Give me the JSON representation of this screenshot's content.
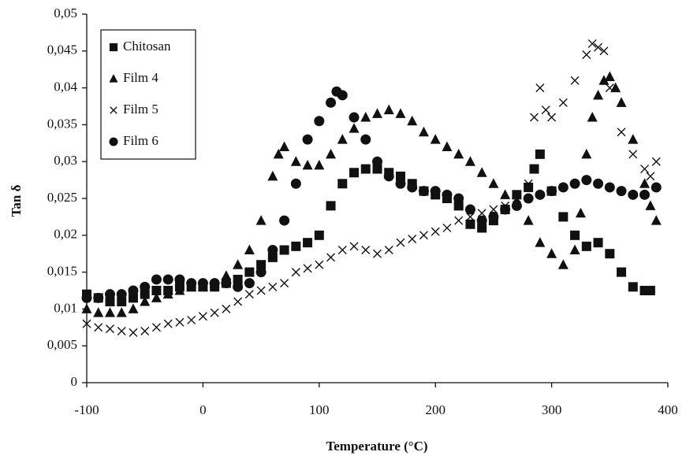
{
  "chart_data": {
    "type": "scatter",
    "x_label": "Temperature (°C)",
    "y_label": "Tan δ",
    "xlim": [
      -100,
      400
    ],
    "xticks": [
      -100,
      0,
      100,
      200,
      300,
      400
    ],
    "ylim": [
      0,
      0.05
    ],
    "yticks": [
      0,
      {
        "value": 0.005,
        "label": "0,005"
      },
      {
        "value": 0.01,
        "label": "0,01"
      },
      {
        "value": 0.015,
        "label": "0,015"
      },
      {
        "value": 0.02,
        "label": "0,02"
      },
      {
        "value": 0.025,
        "label": "0,025"
      },
      {
        "value": 0.03,
        "label": "0,03"
      },
      {
        "value": 0.035,
        "label": "0,035"
      },
      {
        "value": 0.04,
        "label": "0,04"
      },
      {
        "value": 0.045,
        "label": "0,045"
      },
      {
        "value": 0.05,
        "label": "0,05"
      }
    ],
    "grid": false,
    "legend": "upper-left",
    "series": [
      {
        "name": "Chitosan",
        "color": "#111111",
        "marker": "square",
        "x": [
          -100,
          -90,
          -80,
          -70,
          -60,
          -50,
          -40,
          -30,
          -20,
          -10,
          0,
          10,
          20,
          30,
          40,
          50,
          60,
          70,
          80,
          90,
          100,
          110,
          120,
          130,
          140,
          150,
          160,
          170,
          180,
          190,
          200,
          210,
          220,
          230,
          240,
          250,
          260,
          270,
          280,
          285,
          290,
          300,
          310,
          320,
          330,
          340,
          350,
          360,
          370,
          380,
          385
        ],
        "values": [
          0.012,
          0.0115,
          0.011,
          0.011,
          0.0115,
          0.012,
          0.0125,
          0.0125,
          0.013,
          0.013,
          0.013,
          0.013,
          0.0135,
          0.014,
          0.015,
          0.016,
          0.017,
          0.018,
          0.0185,
          0.019,
          0.02,
          0.024,
          0.027,
          0.0285,
          0.029,
          0.029,
          0.0285,
          0.028,
          0.027,
          0.026,
          0.0255,
          0.025,
          0.024,
          0.0215,
          0.021,
          0.022,
          0.0235,
          0.0255,
          0.0265,
          0.029,
          0.031,
          0.026,
          0.0225,
          0.02,
          0.0185,
          0.019,
          0.0175,
          0.015,
          0.013,
          0.0125,
          0.0125
        ]
      },
      {
        "name": "Film 4",
        "color": "#111111",
        "marker": "triangle",
        "x": [
          -100,
          -90,
          -80,
          -70,
          -60,
          -50,
          -40,
          -30,
          -20,
          -10,
          0,
          10,
          20,
          30,
          40,
          50,
          60,
          65,
          70,
          80,
          90,
          100,
          110,
          120,
          130,
          140,
          150,
          160,
          170,
          180,
          190,
          200,
          210,
          220,
          230,
          240,
          250,
          260,
          270,
          280,
          290,
          300,
          310,
          320,
          325,
          330,
          335,
          340,
          345,
          350,
          355,
          360,
          370,
          380,
          385,
          390
        ],
        "values": [
          0.01,
          0.0095,
          0.0095,
          0.0095,
          0.01,
          0.011,
          0.0115,
          0.012,
          0.0125,
          0.013,
          0.013,
          0.0135,
          0.0145,
          0.016,
          0.018,
          0.022,
          0.028,
          0.031,
          0.032,
          0.03,
          0.0295,
          0.0295,
          0.031,
          0.033,
          0.0345,
          0.036,
          0.0365,
          0.037,
          0.0365,
          0.0355,
          0.034,
          0.033,
          0.032,
          0.031,
          0.03,
          0.0285,
          0.027,
          0.0255,
          0.0245,
          0.022,
          0.019,
          0.0175,
          0.016,
          0.018,
          0.023,
          0.031,
          0.036,
          0.039,
          0.041,
          0.0415,
          0.04,
          0.038,
          0.033,
          0.027,
          0.024,
          0.022
        ]
      },
      {
        "name": "Film 5",
        "color": "#111111",
        "marker": "cross",
        "x": [
          -100,
          -90,
          -80,
          -70,
          -60,
          -50,
          -40,
          -30,
          -20,
          -10,
          0,
          10,
          20,
          30,
          40,
          50,
          60,
          70,
          80,
          90,
          100,
          110,
          120,
          130,
          140,
          150,
          160,
          170,
          180,
          190,
          200,
          210,
          220,
          230,
          240,
          250,
          260,
          270,
          280,
          285,
          290,
          295,
          300,
          310,
          320,
          330,
          335,
          340,
          345,
          350,
          360,
          370,
          380,
          385,
          390
        ],
        "values": [
          0.008,
          0.0075,
          0.0073,
          0.007,
          0.0068,
          0.007,
          0.0075,
          0.008,
          0.0082,
          0.0085,
          0.009,
          0.0095,
          0.01,
          0.011,
          0.012,
          0.0125,
          0.013,
          0.0135,
          0.015,
          0.0155,
          0.016,
          0.017,
          0.018,
          0.0185,
          0.018,
          0.0175,
          0.018,
          0.019,
          0.0195,
          0.02,
          0.0205,
          0.021,
          0.022,
          0.0225,
          0.023,
          0.0235,
          0.024,
          0.025,
          0.027,
          0.036,
          0.04,
          0.037,
          0.036,
          0.038,
          0.041,
          0.0445,
          0.046,
          0.0455,
          0.045,
          0.04,
          0.034,
          0.031,
          0.029,
          0.028,
          0.03
        ]
      },
      {
        "name": "Film 6",
        "color": "#111111",
        "marker": "circle",
        "x": [
          -100,
          -90,
          -80,
          -70,
          -60,
          -50,
          -40,
          -30,
          -20,
          -10,
          0,
          10,
          20,
          30,
          40,
          50,
          60,
          70,
          80,
          90,
          100,
          110,
          115,
          120,
          130,
          140,
          150,
          160,
          170,
          180,
          190,
          200,
          210,
          220,
          230,
          240,
          250,
          260,
          270,
          280,
          290,
          300,
          310,
          320,
          330,
          340,
          350,
          360,
          370,
          380,
          390
        ],
        "values": [
          0.0115,
          0.0115,
          0.012,
          0.012,
          0.0125,
          0.013,
          0.014,
          0.014,
          0.014,
          0.0135,
          0.0135,
          0.0135,
          0.0135,
          0.013,
          0.0135,
          0.015,
          0.018,
          0.022,
          0.027,
          0.033,
          0.0355,
          0.038,
          0.0395,
          0.039,
          0.036,
          0.033,
          0.03,
          0.028,
          0.027,
          0.0265,
          0.026,
          0.026,
          0.0255,
          0.025,
          0.0235,
          0.022,
          0.0225,
          0.0235,
          0.024,
          0.025,
          0.0255,
          0.026,
          0.0265,
          0.027,
          0.0275,
          0.027,
          0.0265,
          0.026,
          0.0255,
          0.0255,
          0.0265
        ]
      }
    ]
  }
}
